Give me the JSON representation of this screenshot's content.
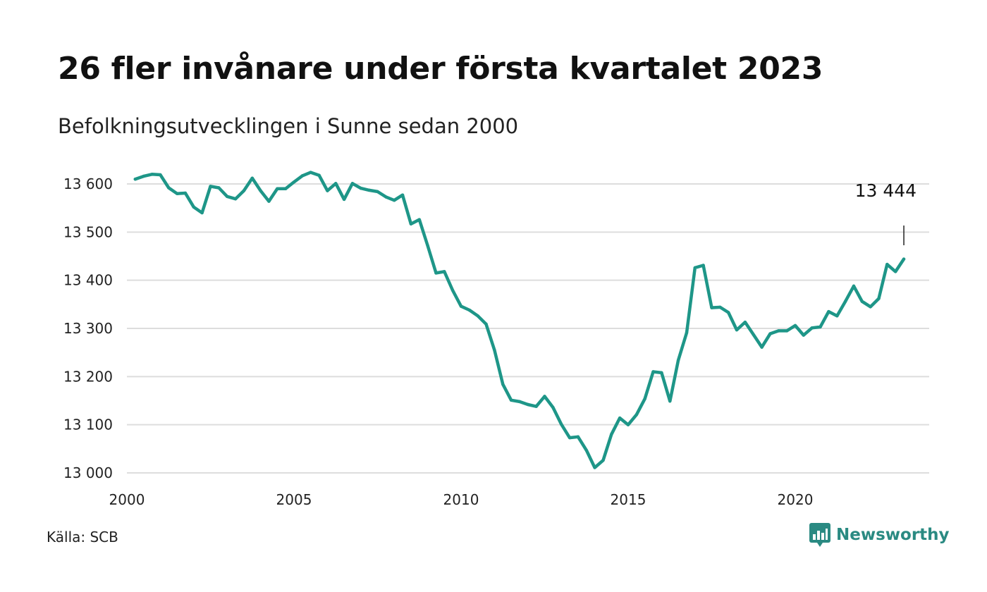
{
  "title": "26 fler invånare under första kvartalet 2023",
  "subtitle": "Befolkningsutvecklingen i Sunne sedan 2000",
  "source": "Källa: SCB",
  "brand": "Newsworthy",
  "colors": {
    "line": "#1e9688",
    "grid": "#dddddd",
    "brand": "#2a8a82"
  },
  "chart_data": {
    "type": "line",
    "title": "26 fler invånare under första kvartalet 2023",
    "subtitle": "Befolkningsutvecklingen i Sunne sedan 2000",
    "xlabel": "",
    "ylabel": "",
    "xlim": [
      2000,
      2023.5
    ],
    "ylim": [
      13000,
      13640
    ],
    "grid": true,
    "y_ticks": [
      13000,
      13100,
      13200,
      13300,
      13400,
      13500,
      13600
    ],
    "y_tick_labels": [
      "13 000",
      "13 100",
      "13 200",
      "13 300",
      "13 400",
      "13 500",
      "13 600"
    ],
    "x_ticks": [
      2000,
      2005,
      2010,
      2015,
      2020
    ],
    "x_tick_labels": [
      "2000",
      "2005",
      "2010",
      "2015",
      "2020"
    ],
    "end_label": "13 444",
    "series": [
      {
        "x": [
          2000.25,
          2000.5,
          2000.75,
          2001.0,
          2001.25,
          2001.5,
          2001.75,
          2002.0,
          2002.25,
          2002.5,
          2002.75,
          2003.0,
          2003.25,
          2003.5,
          2003.75,
          2004.0,
          2004.25,
          2004.5,
          2004.75,
          2005.0,
          2005.25,
          2005.5,
          2005.75,
          2006.0,
          2006.25,
          2006.5,
          2006.75,
          2007.0,
          2007.25,
          2007.5,
          2007.75,
          2008.0,
          2008.25,
          2008.5,
          2008.75,
          2009.0,
          2009.25,
          2009.5,
          2009.75,
          2010.0,
          2010.25,
          2010.5,
          2010.75,
          2011.0,
          2011.25,
          2011.5,
          2011.75,
          2012.0,
          2012.25,
          2012.5,
          2012.75,
          2013.0,
          2013.25,
          2013.5,
          2013.75,
          2014.0,
          2014.25,
          2014.5,
          2014.75,
          2015.0,
          2015.25,
          2015.5,
          2015.75,
          2016.0,
          2016.25,
          2016.5,
          2016.75,
          2017.0,
          2017.25,
          2017.5,
          2017.75,
          2018.0,
          2018.25,
          2018.5,
          2018.75,
          2019.0,
          2019.25,
          2019.5,
          2019.75,
          2020.0,
          2020.25,
          2020.5,
          2020.75,
          2021.0,
          2021.25,
          2021.5,
          2021.75,
          2022.0,
          2022.25,
          2022.5,
          2022.75,
          2023.0,
          2023.25
        ],
        "values": [
          13610,
          13616,
          13620,
          13619,
          13592,
          13580,
          13581,
          13552,
          13540,
          13595,
          13592,
          13574,
          13569,
          13586,
          13612,
          13586,
          13564,
          13590,
          13590,
          13604,
          13617,
          13624,
          13618,
          13586,
          13601,
          13568,
          13601,
          13591,
          13587,
          13584,
          13573,
          13566,
          13577,
          13517,
          13526,
          13472,
          13415,
          13418,
          13379,
          13346,
          13338,
          13326,
          13309,
          13255,
          13184,
          13151,
          13148,
          13142,
          13138,
          13159,
          13136,
          13101,
          13073,
          13075,
          13047,
          13011,
          13026,
          13080,
          13114,
          13100,
          13121,
          13154,
          13210,
          13208,
          13149,
          13234,
          13291,
          13426,
          13431,
          13343,
          13344,
          13333,
          13297,
          13313,
          13287,
          13261,
          13289,
          13295,
          13295,
          13306,
          13286,
          13301,
          13303,
          13335,
          13326,
          13356,
          13388,
          13356,
          13345,
          13362,
          13433,
          13418,
          13444
        ]
      }
    ]
  }
}
